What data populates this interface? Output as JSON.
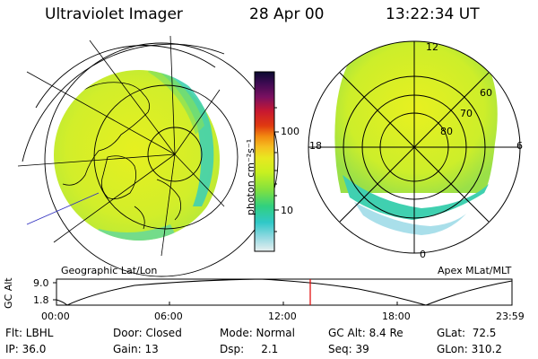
{
  "header": {
    "title": "Ultraviolet Imager",
    "date": "28 Apr 00",
    "time": "13:22:34 UT"
  },
  "left_map": {
    "caption": "Geographic Lat/Lon"
  },
  "right_map": {
    "caption": "Apex MLat/MLT",
    "mlt_labels": [
      "12",
      "6",
      "0",
      "18"
    ],
    "mlat_labels": [
      "60",
      "70",
      "80"
    ]
  },
  "colorbar": {
    "unit_label": "photon cm⁻²s⁻¹",
    "ticks": [
      "100",
      "10"
    ],
    "colors": [
      "#0a0a30",
      "#3a0a50",
      "#7a1060",
      "#c81830",
      "#e03a10",
      "#f28a10",
      "#f5c020",
      "#e8e820",
      "#c8f020",
      "#80e040",
      "#30d080",
      "#30c8c8",
      "#90d8e0",
      "#e8f0f0"
    ]
  },
  "timeline": {
    "ylabel": "GC Alt",
    "yticks": [
      "9.0",
      "1.8"
    ],
    "xticks": [
      "00:00",
      "06:00",
      "12:00",
      "18:00",
      "23:59"
    ],
    "marker_time_hours": 13.37
  },
  "info": {
    "flt": "Flt: LBHL",
    "door": "Door: Closed",
    "mode": "Mode: Normal",
    "gc_alt": "GC Alt: 8.4 Re",
    "glat": "GLat:  72.5",
    "ip": "IP: 36.0",
    "gain": "Gain: 13",
    "dsp": "Dsp:     2.1",
    "seq": "Seq: 39",
    "glon": "GLon: 310.2"
  }
}
